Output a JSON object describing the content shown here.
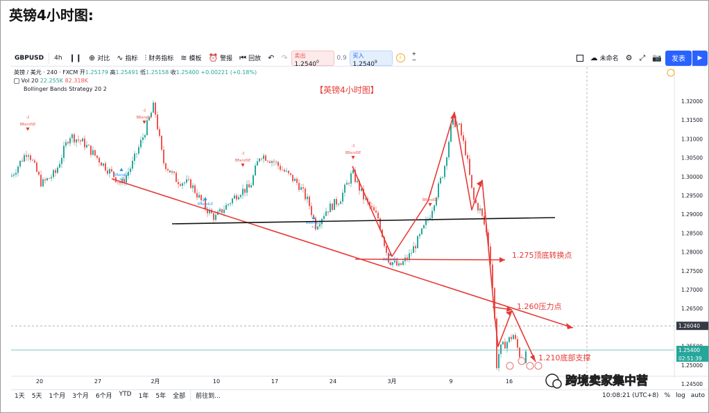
{
  "heading": "英镑4小时图:",
  "toolbar": {
    "symbol": "GBPUSD",
    "interval": "4h",
    "compare": "对比",
    "indicators": "指标",
    "financials": "财务指标",
    "template": "模板",
    "alert": "警报",
    "replay": "回放",
    "sell_label": "卖出",
    "sell_price": "1.2540",
    "sell_sup": "0",
    "spread": "0.9",
    "buy_label": "买入",
    "buy_price": "1.2540",
    "buy_sup": "9",
    "layout_name": "未命名",
    "publish": "发表"
  },
  "legend": {
    "pair": "英镑 / 美元 · 240 · FXCM",
    "open_label": "开",
    "open": "1.25179",
    "high_label": "高",
    "high": "1.25491",
    "low_label": "低",
    "low": "1.25158",
    "close_label": "收",
    "close": "1.25400",
    "change": "+0.00221 (+0.18%)",
    "vol_label": "Vol 20",
    "vol1": "22.255K",
    "vol2": "82.318K",
    "strategy": "Bollinger Bands Strategy 20 2"
  },
  "chart_title": "【英镑4小时图】",
  "annotations": {
    "a1": "1.275顶底转换点",
    "a2": "1.260压力点",
    "a3": "1.210底部支撑"
  },
  "watermark": "跨境卖家集中营",
  "signal_labels": {
    "bandse": "BBandSE",
    "bandle": "BBandLE",
    "minus2": "-2",
    "plus2": "+2"
  },
  "price_badges": {
    "crosshair": "1.26040",
    "last": "1.25400",
    "countdown": "02:51:39"
  },
  "chart_data": {
    "type": "candlestick",
    "y_ticks": [
      "1.32000",
      "1.31500",
      "1.31000",
      "1.30500",
      "1.30000",
      "1.29500",
      "1.29000",
      "1.28500",
      "1.28000",
      "1.27500",
      "1.27000",
      "1.26500",
      "1.26000",
      "1.25500",
      "1.25000",
      "1.24500"
    ],
    "x_ticks": [
      "20",
      "27",
      "2月",
      "10",
      "17",
      "24",
      "3月",
      "9",
      "16"
    ],
    "ylim": [
      1.2435,
      1.3245
    ]
  },
  "bottom": {
    "ranges": [
      "1天",
      "5天",
      "1个月",
      "3个月",
      "6个月",
      "YTD",
      "1年",
      "5年",
      "全部"
    ],
    "goto": "前往到...",
    "time": "10:08:21 (UTC+8)",
    "percent": "%",
    "log": "log",
    "auto": "auto"
  },
  "colors": {
    "up": "#26a69a",
    "down": "#ef5350",
    "arrow": "#e53935",
    "trendline": "#111111"
  }
}
